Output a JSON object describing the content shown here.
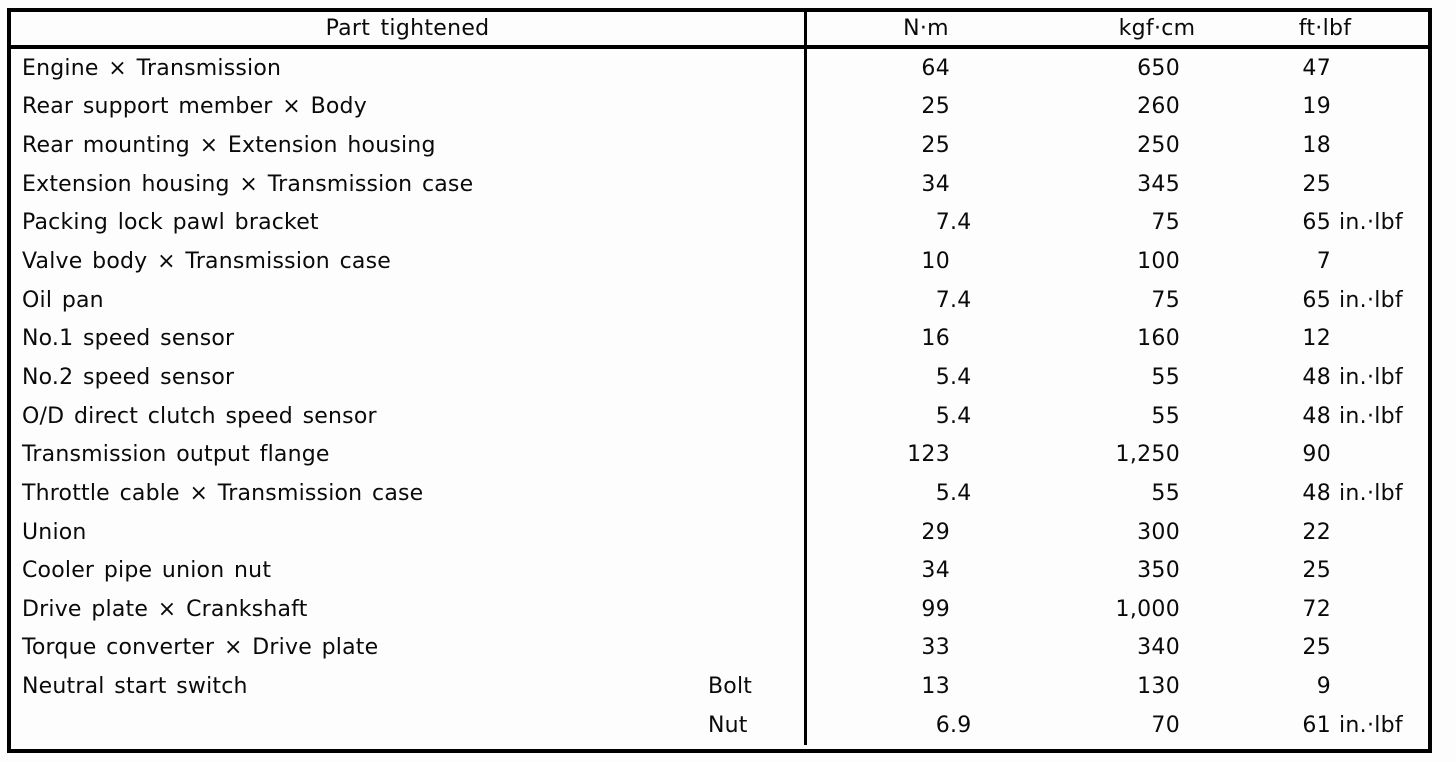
{
  "table": {
    "columns": {
      "part": "Part tightened",
      "nm": "N·m",
      "kgf": "kgf·cm",
      "ft": "ft·lbf"
    },
    "rows": [
      {
        "part": "Engine × Transmission",
        "sub": "",
        "nm": "64",
        "kgf": "650",
        "ft": "47"
      },
      {
        "part": "Rear support member × Body",
        "sub": "",
        "nm": "25",
        "kgf": "260",
        "ft": "19"
      },
      {
        "part": "Rear mounting × Extension housing",
        "sub": "",
        "nm": "25",
        "kgf": "250",
        "ft": "18"
      },
      {
        "part": "Extension housing × Transmission case",
        "sub": "",
        "nm": "34",
        "kgf": "345",
        "ft": "25"
      },
      {
        "part": "Packing lock pawl bracket",
        "sub": "",
        "nm": "7.4",
        "kgf": "75",
        "ft": "65 in.·lbf"
      },
      {
        "part": "Valve body × Transmission case",
        "sub": "",
        "nm": "10",
        "kgf": "100",
        "ft": "7"
      },
      {
        "part": "Oil pan",
        "sub": "",
        "nm": "7.4",
        "kgf": "75",
        "ft": "65 in.·lbf"
      },
      {
        "part": "No.1 speed sensor",
        "sub": "",
        "nm": "16",
        "kgf": "160",
        "ft": "12"
      },
      {
        "part": "No.2 speed sensor",
        "sub": "",
        "nm": "5.4",
        "kgf": "55",
        "ft": "48 in.·lbf"
      },
      {
        "part": "O/D direct clutch speed sensor",
        "sub": "",
        "nm": "5.4",
        "kgf": "55",
        "ft": "48 in.·lbf"
      },
      {
        "part": "Transmission output flange",
        "sub": "",
        "nm": "123",
        "kgf": "1,250",
        "ft": "90"
      },
      {
        "part": "Throttle cable × Transmission case",
        "sub": "",
        "nm": "5.4",
        "kgf": "55",
        "ft": "48 in.·lbf"
      },
      {
        "part": "Union",
        "sub": "",
        "nm": "29",
        "kgf": "300",
        "ft": "22"
      },
      {
        "part": "Cooler pipe union nut",
        "sub": "",
        "nm": "34",
        "kgf": "350",
        "ft": "25"
      },
      {
        "part": "Drive plate × Crankshaft",
        "sub": "",
        "nm": "99",
        "kgf": "1,000",
        "ft": "72"
      },
      {
        "part": "Torque converter × Drive plate",
        "sub": "",
        "nm": "33",
        "kgf": "340",
        "ft": "25"
      },
      {
        "part": "Neutral start switch",
        "sub": "Bolt",
        "nm": "13",
        "kgf": "130",
        "ft": "9"
      },
      {
        "part": "",
        "sub": "Nut",
        "nm": "6.9",
        "kgf": "70",
        "ft": "61 in.·lbf"
      }
    ]
  }
}
